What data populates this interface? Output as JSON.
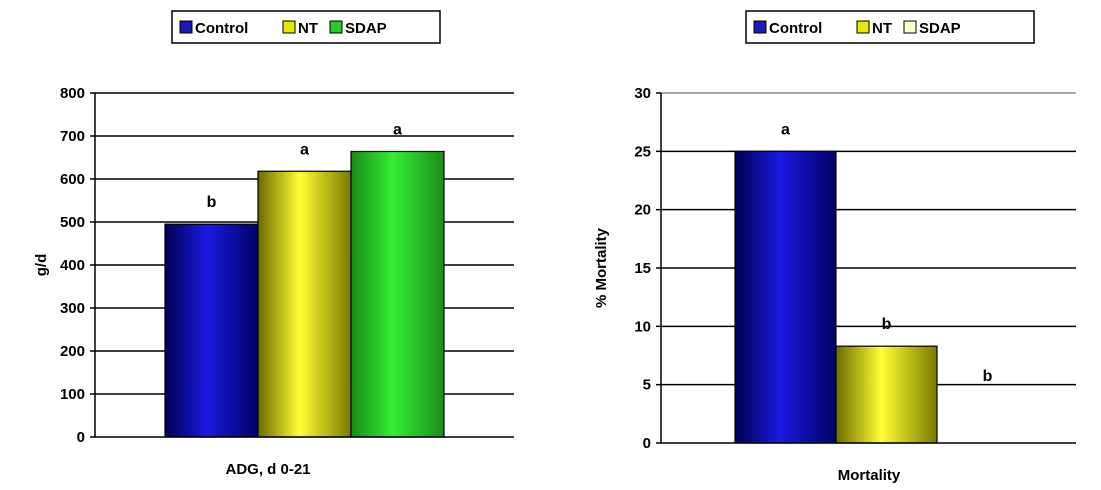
{
  "chart_data": [
    {
      "type": "bar",
      "categories": [
        "ADG, d 0-21"
      ],
      "xlabel": "ADG, d 0-21",
      "ylabel": "g/d",
      "ylim": [
        0,
        800
      ],
      "yticks": [
        "0",
        "100",
        "200",
        "300",
        "400",
        "500",
        "600",
        "700",
        "800"
      ],
      "grid": true,
      "legend_position": "top",
      "series": [
        {
          "name": "Control",
          "values": [
            495
          ],
          "label": "b",
          "color": "#1a1ab8"
        },
        {
          "name": "NT",
          "values": [
            618
          ],
          "label": "a",
          "color": "#e8e800"
        },
        {
          "name": "SDAP",
          "values": [
            664
          ],
          "label": "a",
          "color": "#22cc22"
        }
      ]
    },
    {
      "type": "bar",
      "categories": [
        "Mortality"
      ],
      "xlabel": "Mortality",
      "ylabel": "% Mortality",
      "ylim": [
        0,
        30
      ],
      "yticks": [
        "0",
        "5",
        "10",
        "15",
        "20",
        "25",
        "30"
      ],
      "grid": true,
      "legend_position": "top",
      "series": [
        {
          "name": "Control",
          "values": [
            25
          ],
          "label": "a",
          "color": "#1a1ab8"
        },
        {
          "name": "NT",
          "values": [
            8.3
          ],
          "label": "b",
          "color": "#e8e800"
        },
        {
          "name": "SDAP",
          "values": [
            0
          ],
          "label": "b",
          "color": "#ffffcc"
        }
      ]
    }
  ]
}
